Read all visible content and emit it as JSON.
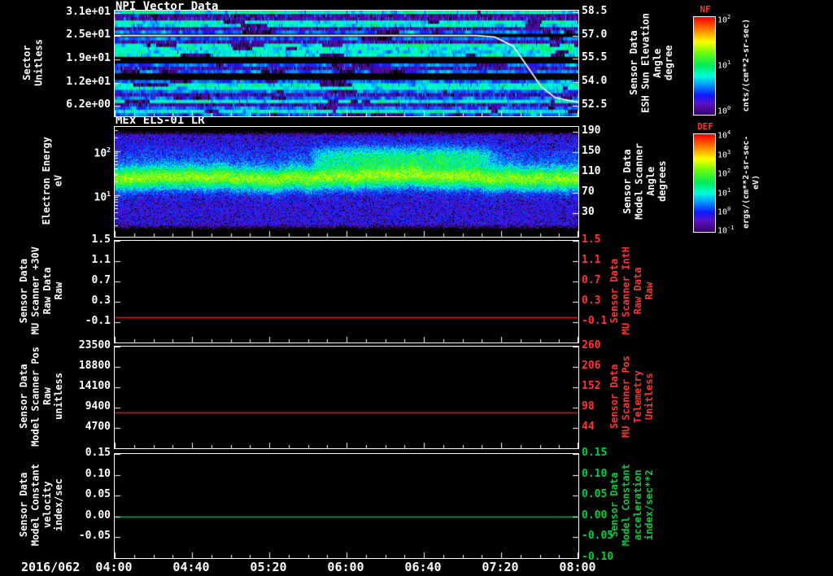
{
  "figure": {
    "bg": "#000000",
    "fg": "#ffffff"
  },
  "x_axis": {
    "date": "2016/062",
    "ticks": [
      "04:00",
      "04:40",
      "05:20",
      "06:00",
      "06:40",
      "07:20",
      "08:00"
    ]
  },
  "chart_data": [
    {
      "type": "heatmap",
      "title": "NPI Vector Data",
      "left_axis": {
        "lines": [
          "Sector",
          "Unitless"
        ],
        "color": "#ffffff",
        "scale": "linear",
        "ylim": [
          31.6,
          3.4
        ],
        "ticks": [
          {
            "v": 31,
            "t": "3.1e+01"
          },
          {
            "v": 24.8,
            "t": "2.5e+01"
          },
          {
            "v": 18.6,
            "t": "1.9e+01"
          },
          {
            "v": 12.4,
            "t": "1.2e+01"
          },
          {
            "v": 6.2,
            "t": "6.2e+00"
          }
        ]
      },
      "right_axis": {
        "lines": [
          "Sensor Data",
          "ESH Sun Elevation",
          "Angle",
          "degree"
        ],
        "color": "#ffffff",
        "scale": "linear",
        "ylim": [
          58.6,
          51.8
        ],
        "ticks": [
          {
            "v": 58.5,
            "t": "58.5"
          },
          {
            "v": 57,
            "t": "57.0"
          },
          {
            "v": 55.5,
            "t": "55.5"
          },
          {
            "v": 54,
            "t": "54.0"
          },
          {
            "v": 52.5,
            "t": "52.5"
          }
        ]
      },
      "overlay_line": {
        "color": "#ffffff",
        "axis": "right",
        "points": [
          [
            0,
            57
          ],
          [
            0.78,
            57
          ],
          [
            0.82,
            56.9
          ],
          [
            0.86,
            56.3
          ],
          [
            0.89,
            55.0
          ],
          [
            0.92,
            53.7
          ],
          [
            0.95,
            53.0
          ],
          [
            1,
            52.7
          ]
        ]
      },
      "colorbar": {
        "name": "NF",
        "name_color": "#ff3333",
        "units": "cnts/(cm**2-sr-sec)",
        "ticks": [
          {
            "exp": "2",
            "f": 0.03
          },
          {
            "exp": "1",
            "f": 0.5
          },
          {
            "exp": "0",
            "f": 0.97
          }
        ]
      },
      "heat": {
        "kind": "npi",
        "rows": 32,
        "row_types": "c p p c c p b k b p c c c c k k b p b k k b c c b p b c p b c b"
      }
    },
    {
      "type": "heatmap",
      "title": "MEx ELS-01 LR",
      "left_axis": {
        "lines": [
          "Electron Energy",
          "eV"
        ],
        "color": "#ffffff",
        "scale": "log",
        "ylim_exp": [
          2.55,
          0.05
        ],
        "ticks": [
          {
            "v": 100,
            "exp": "2"
          },
          {
            "v": 10,
            "exp": "1"
          }
        ]
      },
      "right_axis": {
        "lines": [
          "Sensor Data",
          "Model Scanner",
          "Angle",
          "degrees"
        ],
        "color": "#ffffff",
        "scale": "linear",
        "ylim": [
          200,
          -16
        ],
        "ticks": [
          {
            "v": 190,
            "t": "190"
          },
          {
            "v": 150,
            "t": "150"
          },
          {
            "v": 110,
            "t": "110"
          },
          {
            "v": 70,
            "t": "70"
          },
          {
            "v": 30,
            "t": "30"
          }
        ]
      },
      "colorbar": {
        "name": "DEF",
        "name_color": "#ff3333",
        "units": "ergs/(cm**2-sr-sec-eV)",
        "ticks": [
          {
            "exp": "4",
            "f": 0.02
          },
          {
            "exp": "3",
            "f": 0.22
          },
          {
            "exp": "2",
            "f": 0.41
          },
          {
            "exp": "1",
            "f": 0.61
          },
          {
            "exp": "0",
            "f": 0.8
          },
          {
            "exp": "-1",
            "f": 0.99
          }
        ]
      },
      "heat": {
        "kind": "els",
        "band_center": 0.46,
        "band_width": 0.105
      }
    },
    {
      "type": "line",
      "left_axis": {
        "lines": [
          "Sensor Data",
          "MU Scanner +30V",
          "Raw Data",
          "Raw"
        ],
        "color": "#ffffff",
        "scale": "linear",
        "ylim": [
          1.5,
          -0.5
        ],
        "ticks": [
          {
            "v": 1.5,
            "t": "1.5"
          },
          {
            "v": 1.1,
            "t": "1.1"
          },
          {
            "v": 0.7,
            "t": "0.7"
          },
          {
            "v": 0.3,
            "t": "0.3"
          },
          {
            "v": -0.1,
            "t": "-0.1"
          }
        ]
      },
      "right_axis": {
        "lines": [
          "Sensor Data",
          "MU Scanner IntH",
          "Raw Data",
          "Raw"
        ],
        "color": "#ff3333",
        "scale": "linear",
        "ylim": [
          1.5,
          -0.5
        ],
        "ticks": [
          {
            "v": 1.5,
            "t": "1.5"
          },
          {
            "v": 1.1,
            "t": "1.1"
          },
          {
            "v": 0.7,
            "t": "0.7"
          },
          {
            "v": 0.3,
            "t": "0.3"
          },
          {
            "v": -0.1,
            "t": "-0.1"
          }
        ]
      },
      "series": [
        {
          "name": "MU Scanner +30V Raw",
          "color": "#dd2222",
          "value": 0.0
        }
      ]
    },
    {
      "type": "line",
      "left_axis": {
        "lines": [
          "Sensor Data",
          "Model Scanner Pos",
          "Raw",
          "unitless"
        ],
        "color": "#ffffff",
        "scale": "linear",
        "ylim": [
          23500,
          0
        ],
        "ticks": [
          {
            "v": 23500,
            "t": "23500"
          },
          {
            "v": 18800,
            "t": "18800"
          },
          {
            "v": 14100,
            "t": "14100"
          },
          {
            "v": 9400,
            "t": "9400"
          },
          {
            "v": 4700,
            "t": "4700"
          }
        ]
      },
      "right_axis": {
        "lines": [
          "Sensor Data",
          "MU Scanner Pos",
          "Telemetry",
          "Unitless"
        ],
        "color": "#ff3333",
        "scale": "linear",
        "ylim": [
          260,
          -10
        ],
        "ticks": [
          {
            "v": 260,
            "t": "260"
          },
          {
            "v": 206,
            "t": "206"
          },
          {
            "v": 152,
            "t": "152"
          },
          {
            "v": 98,
            "t": "98"
          },
          {
            "v": 44,
            "t": "44"
          }
        ]
      },
      "series": [
        {
          "name": "Model Scanner Pos Raw",
          "color": "#dd2222",
          "value": 8200
        }
      ]
    },
    {
      "type": "line",
      "left_axis": {
        "lines": [
          "Sensor Data",
          "Model Constant",
          "velocity",
          "index/sec"
        ],
        "color": "#ffffff",
        "scale": "linear",
        "ylim": [
          0.15,
          -0.1
        ],
        "ticks": [
          {
            "v": 0.15,
            "t": "0.15"
          },
          {
            "v": 0.1,
            "t": "0.10"
          },
          {
            "v": 0.05,
            "t": "0.05"
          },
          {
            "v": 0,
            "t": "0.00"
          },
          {
            "v": -0.05,
            "t": "-0.05"
          }
        ]
      },
      "right_axis": {
        "lines": [
          "Sensor Data",
          "Model Constant",
          "acceleration",
          "index/sec**2"
        ],
        "color": "#00cc44",
        "scale": "linear",
        "ylim": [
          0.15,
          -0.1
        ],
        "ticks": [
          {
            "v": 0.15,
            "t": "0.15"
          },
          {
            "v": 0.1,
            "t": "0.10"
          },
          {
            "v": 0.05,
            "t": "0.05"
          },
          {
            "v": 0,
            "t": "0.00"
          },
          {
            "v": -0.05,
            "t": "-0.05"
          },
          {
            "v": -0.1,
            "t": "-0.10"
          }
        ]
      },
      "series": [
        {
          "name": "Model Constant velocity",
          "color": "#00bb44",
          "value": 0.0
        }
      ]
    }
  ]
}
